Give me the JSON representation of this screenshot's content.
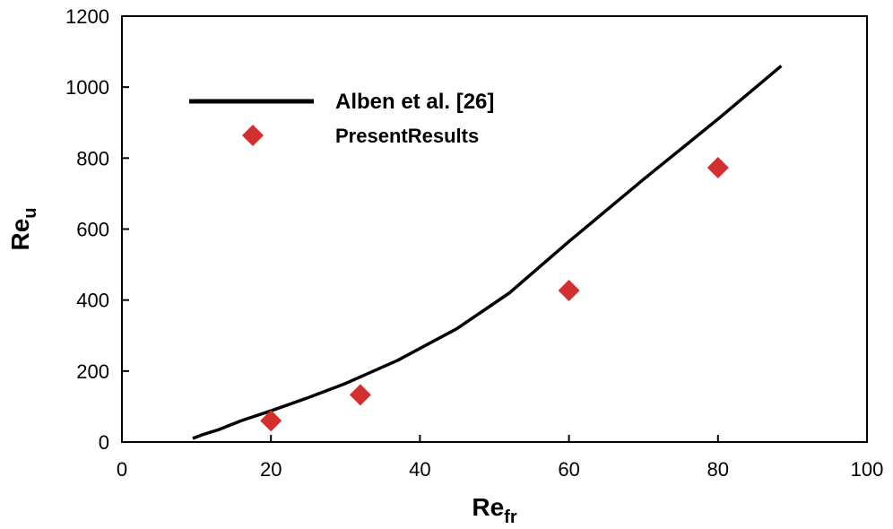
{
  "chart_data": {
    "type": "line",
    "xlabel": "Re",
    "xlabel_sub": "fr",
    "ylabel": "Re",
    "ylabel_sub": "u",
    "xlim": [
      0,
      100
    ],
    "ylim": [
      0,
      1200
    ],
    "x_ticks": [
      0,
      20,
      40,
      60,
      80,
      100
    ],
    "y_ticks": [
      0,
      200,
      400,
      600,
      800,
      1000,
      1200
    ],
    "grid": false,
    "legend_position": "top-left",
    "series": [
      {
        "name": "Alben et al. [26]",
        "style": "line",
        "color": "#000000",
        "x": [
          9.5,
          11,
          13,
          16,
          20,
          25,
          30,
          37,
          45,
          52,
          60,
          70,
          80,
          88.5
        ],
        "y": [
          10,
          22,
          35,
          60,
          88,
          125,
          165,
          230,
          320,
          420,
          565,
          740,
          910,
          1060
        ]
      },
      {
        "name": "PresentResults",
        "style": "marker",
        "marker": "diamond",
        "color": "#d32f2f",
        "x": [
          20,
          32,
          60,
          80
        ],
        "y": [
          60,
          133,
          427,
          773
        ]
      }
    ]
  }
}
